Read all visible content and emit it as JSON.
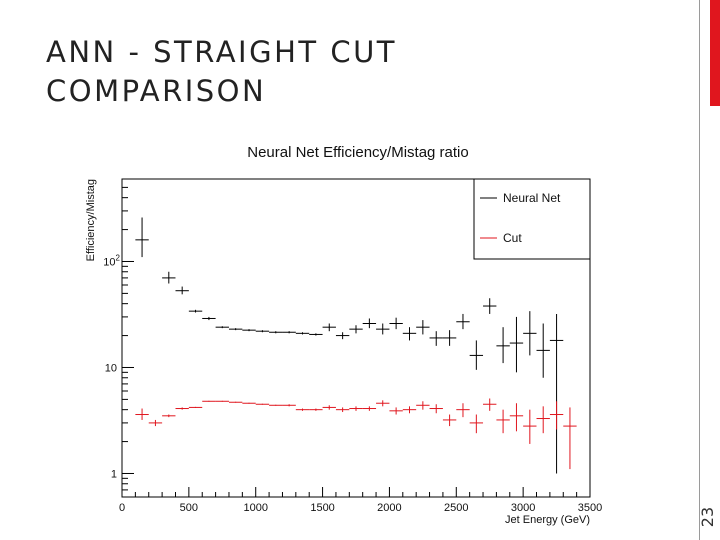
{
  "slide": {
    "title_line1": "ANN - STRAIGHT CUT",
    "title_line2": "COMPARISON",
    "slide_number": "23",
    "accent_color": "#e0161e"
  },
  "chart_data": {
    "type": "scatter",
    "title": "Neural Net Efficiency/Mistag ratio",
    "xlabel": "Jet Energy (GeV)",
    "ylabel": "Efficiency/Mistag",
    "x_scale": "linear",
    "y_scale": "log",
    "xlim": [
      0,
      3500
    ],
    "ylim": [
      0.6,
      600
    ],
    "x_ticks": [
      {
        "value": 0,
        "label": "0"
      },
      {
        "value": 500,
        "label": "500"
      },
      {
        "value": 1000,
        "label": "1000"
      },
      {
        "value": 1500,
        "label": "1500"
      },
      {
        "value": 2000,
        "label": "2000"
      },
      {
        "value": 2500,
        "label": "2500"
      },
      {
        "value": 3000,
        "label": "3000"
      },
      {
        "value": 3500,
        "label": "3500"
      }
    ],
    "y_ticks": [
      {
        "value": 1,
        "label": "1"
      },
      {
        "value": 10,
        "label": "10"
      },
      {
        "value": 100,
        "label": "10",
        "exponent": "2"
      }
    ],
    "legend": {
      "position": "top-right",
      "entries": [
        "Neural Net",
        "Cut"
      ]
    },
    "series": [
      {
        "name": "Neural Net",
        "color": "#000000",
        "points": [
          {
            "x": 150,
            "xerr": 50,
            "y": 160,
            "ylo": 110,
            "yhi": 260
          },
          {
            "x": 350,
            "xerr": 50,
            "y": 70,
            "ylo": 62,
            "yhi": 80
          },
          {
            "x": 450,
            "xerr": 50,
            "y": 53,
            "ylo": 49,
            "yhi": 58
          },
          {
            "x": 550,
            "xerr": 50,
            "y": 34,
            "ylo": 33,
            "yhi": 35
          },
          {
            "x": 650,
            "xerr": 50,
            "y": 29,
            "ylo": 28,
            "yhi": 30
          },
          {
            "x": 750,
            "xerr": 50,
            "y": 24,
            "ylo": 23.5,
            "yhi": 24.5
          },
          {
            "x": 850,
            "xerr": 50,
            "y": 23,
            "ylo": 22.5,
            "yhi": 23.5
          },
          {
            "x": 950,
            "xerr": 50,
            "y": 22.5,
            "ylo": 22,
            "yhi": 23
          },
          {
            "x": 1050,
            "xerr": 50,
            "y": 22,
            "ylo": 21.5,
            "yhi": 22.5
          },
          {
            "x": 1150,
            "xerr": 50,
            "y": 21.5,
            "ylo": 21,
            "yhi": 22
          },
          {
            "x": 1250,
            "xerr": 50,
            "y": 21.5,
            "ylo": 21,
            "yhi": 22
          },
          {
            "x": 1350,
            "xerr": 50,
            "y": 21,
            "ylo": 20.5,
            "yhi": 21.5
          },
          {
            "x": 1450,
            "xerr": 50,
            "y": 20.5,
            "ylo": 20,
            "yhi": 21
          },
          {
            "x": 1550,
            "xerr": 50,
            "y": 24,
            "ylo": 22,
            "yhi": 26
          },
          {
            "x": 1650,
            "xerr": 50,
            "y": 20,
            "ylo": 18.5,
            "yhi": 21.5
          },
          {
            "x": 1750,
            "xerr": 50,
            "y": 23,
            "ylo": 21,
            "yhi": 25
          },
          {
            "x": 1850,
            "xerr": 50,
            "y": 26,
            "ylo": 23.5,
            "yhi": 29
          },
          {
            "x": 1950,
            "xerr": 50,
            "y": 23,
            "ylo": 20.5,
            "yhi": 26
          },
          {
            "x": 2050,
            "xerr": 50,
            "y": 26,
            "ylo": 23,
            "yhi": 29.5
          },
          {
            "x": 2150,
            "xerr": 50,
            "y": 21,
            "ylo": 18,
            "yhi": 24
          },
          {
            "x": 2250,
            "xerr": 50,
            "y": 24,
            "ylo": 20.5,
            "yhi": 28
          },
          {
            "x": 2350,
            "xerr": 50,
            "y": 19,
            "ylo": 16,
            "yhi": 22
          },
          {
            "x": 2450,
            "xerr": 50,
            "y": 19,
            "ylo": 16,
            "yhi": 22.5
          },
          {
            "x": 2550,
            "xerr": 50,
            "y": 27,
            "ylo": 23,
            "yhi": 32
          },
          {
            "x": 2650,
            "xerr": 50,
            "y": 13,
            "ylo": 9.5,
            "yhi": 18
          },
          {
            "x": 2750,
            "xerr": 50,
            "y": 38,
            "ylo": 32,
            "yhi": 45
          },
          {
            "x": 2850,
            "xerr": 50,
            "y": 16,
            "ylo": 11,
            "yhi": 24
          },
          {
            "x": 2950,
            "xerr": 50,
            "y": 17,
            "ylo": 9,
            "yhi": 30
          },
          {
            "x": 3050,
            "xerr": 50,
            "y": 21,
            "ylo": 13,
            "yhi": 34
          },
          {
            "x": 3150,
            "xerr": 50,
            "y": 14.5,
            "ylo": 8,
            "yhi": 26
          },
          {
            "x": 3250,
            "xerr": 50,
            "y": 18,
            "ylo": 1.0,
            "yhi": 32
          }
        ]
      },
      {
        "name": "Cut",
        "color": "#e0161e",
        "points": [
          {
            "x": 150,
            "xerr": 50,
            "y": 3.6,
            "ylo": 3.2,
            "yhi": 4.1
          },
          {
            "x": 250,
            "xerr": 50,
            "y": 3.0,
            "ylo": 2.8,
            "yhi": 3.2
          },
          {
            "x": 350,
            "xerr": 50,
            "y": 3.5,
            "ylo": 3.4,
            "yhi": 3.6
          },
          {
            "x": 450,
            "xerr": 50,
            "y": 4.1,
            "ylo": 4.0,
            "yhi": 4.2
          },
          {
            "x": 550,
            "xerr": 50,
            "y": 4.2,
            "ylo": 4.15,
            "yhi": 4.25
          },
          {
            "x": 650,
            "xerr": 50,
            "y": 4.8,
            "ylo": 4.75,
            "yhi": 4.85
          },
          {
            "x": 750,
            "xerr": 50,
            "y": 4.8,
            "ylo": 4.75,
            "yhi": 4.85
          },
          {
            "x": 850,
            "xerr": 50,
            "y": 4.7,
            "ylo": 4.65,
            "yhi": 4.75
          },
          {
            "x": 950,
            "xerr": 50,
            "y": 4.6,
            "ylo": 4.55,
            "yhi": 4.65
          },
          {
            "x": 1050,
            "xerr": 50,
            "y": 4.5,
            "ylo": 4.45,
            "yhi": 4.55
          },
          {
            "x": 1150,
            "xerr": 50,
            "y": 4.4,
            "ylo": 4.35,
            "yhi": 4.45
          },
          {
            "x": 1250,
            "xerr": 50,
            "y": 4.4,
            "ylo": 4.3,
            "yhi": 4.5
          },
          {
            "x": 1350,
            "xerr": 50,
            "y": 4.0,
            "ylo": 3.9,
            "yhi": 4.1
          },
          {
            "x": 1450,
            "xerr": 50,
            "y": 4.0,
            "ylo": 3.9,
            "yhi": 4.1
          },
          {
            "x": 1550,
            "xerr": 50,
            "y": 4.2,
            "ylo": 4.0,
            "yhi": 4.4
          },
          {
            "x": 1650,
            "xerr": 50,
            "y": 4.0,
            "ylo": 3.8,
            "yhi": 4.2
          },
          {
            "x": 1750,
            "xerr": 50,
            "y": 4.1,
            "ylo": 3.9,
            "yhi": 4.3
          },
          {
            "x": 1850,
            "xerr": 50,
            "y": 4.1,
            "ylo": 3.9,
            "yhi": 4.3
          },
          {
            "x": 1950,
            "xerr": 50,
            "y": 4.6,
            "ylo": 4.3,
            "yhi": 4.9
          },
          {
            "x": 2050,
            "xerr": 50,
            "y": 3.9,
            "ylo": 3.6,
            "yhi": 4.2
          },
          {
            "x": 2150,
            "xerr": 50,
            "y": 4.0,
            "ylo": 3.7,
            "yhi": 4.3
          },
          {
            "x": 2250,
            "xerr": 50,
            "y": 4.4,
            "ylo": 4.0,
            "yhi": 4.8
          },
          {
            "x": 2350,
            "xerr": 50,
            "y": 4.1,
            "ylo": 3.7,
            "yhi": 4.5
          },
          {
            "x": 2450,
            "xerr": 50,
            "y": 3.2,
            "ylo": 2.8,
            "yhi": 3.6
          },
          {
            "x": 2550,
            "xerr": 50,
            "y": 4.0,
            "ylo": 3.4,
            "yhi": 4.6
          },
          {
            "x": 2650,
            "xerr": 50,
            "y": 3.0,
            "ylo": 2.4,
            "yhi": 3.6
          },
          {
            "x": 2750,
            "xerr": 50,
            "y": 4.5,
            "ylo": 3.9,
            "yhi": 5.1
          },
          {
            "x": 2850,
            "xerr": 50,
            "y": 3.2,
            "ylo": 2.4,
            "yhi": 4.0
          },
          {
            "x": 2950,
            "xerr": 50,
            "y": 3.5,
            "ylo": 2.5,
            "yhi": 4.6
          },
          {
            "x": 3050,
            "xerr": 50,
            "y": 2.8,
            "ylo": 1.9,
            "yhi": 4.0
          },
          {
            "x": 3150,
            "xerr": 50,
            "y": 3.3,
            "ylo": 2.4,
            "yhi": 4.3
          },
          {
            "x": 3250,
            "xerr": 50,
            "y": 3.6,
            "ylo": 2.6,
            "yhi": 4.8
          },
          {
            "x": 3350,
            "xerr": 50,
            "y": 2.8,
            "ylo": 1.1,
            "yhi": 4.2
          }
        ]
      }
    ]
  }
}
